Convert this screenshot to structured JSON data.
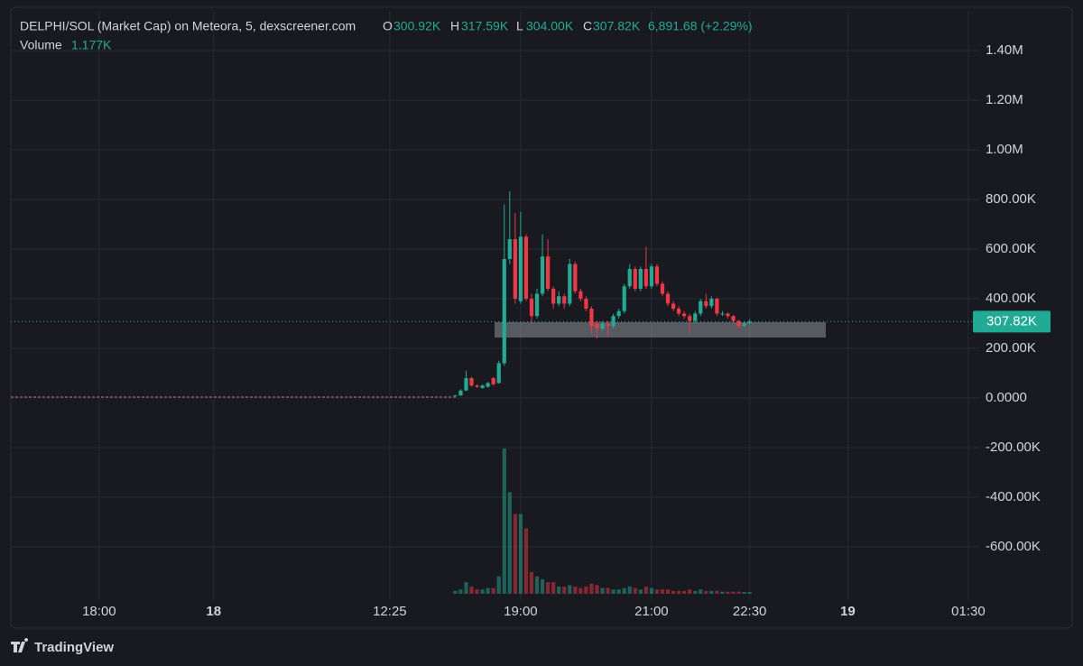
{
  "chart_data": {
    "type": "candlestick",
    "title": "DELPHI/SOL (Market Cap) on Meteora, 5, dexscreener.com",
    "legend": {
      "open_label": "O",
      "open": "300.92K",
      "high_label": "H",
      "high": "317.59K",
      "low_label": "L",
      "low": "304.00K",
      "close_label": "C",
      "close": "307.82K",
      "change": "6,891.68 (+2.29%)",
      "volume_label": "Volume",
      "volume": "1.177K"
    },
    "up_color": "#22ab94",
    "down_color": "#f23645",
    "grid": true,
    "x": [
      -12,
      -11,
      -10,
      -9,
      -8,
      -7,
      -6,
      -5,
      -4,
      -3,
      -2,
      -1,
      0,
      1,
      2,
      3,
      4,
      5,
      6,
      7,
      8,
      9,
      10,
      11,
      12,
      13,
      14,
      15,
      16,
      17,
      18,
      19,
      20,
      21,
      22,
      23,
      24,
      25,
      26,
      27,
      28,
      29,
      30,
      31,
      32,
      33,
      34,
      35,
      36,
      37,
      38,
      39,
      40,
      41,
      42
    ],
    "open": [
      8000,
      10000,
      30000,
      80000,
      50000,
      40000,
      45000,
      80000,
      60000,
      140000,
      560000,
      640000,
      390000,
      650000,
      400000,
      330000,
      420000,
      570000,
      440000,
      380000,
      410000,
      380000,
      540000,
      430000,
      400000,
      360000,
      300000,
      280000,
      300000,
      290000,
      330000,
      350000,
      450000,
      520000,
      440000,
      520000,
      450000,
      530000,
      460000,
      420000,
      380000,
      360000,
      340000,
      330000,
      310000,
      340000,
      390000,
      370000,
      400000,
      340000,
      340000,
      330000,
      310000,
      290000,
      300920
    ],
    "high": [
      12000,
      35000,
      110000,
      85000,
      55000,
      55000,
      65000,
      85000,
      150000,
      780000,
      833000,
      745000,
      750000,
      660000,
      420000,
      440000,
      660000,
      640000,
      450000,
      430000,
      420000,
      560000,
      550000,
      440000,
      410000,
      370000,
      310000,
      310000,
      310000,
      340000,
      360000,
      460000,
      540000,
      530000,
      530000,
      610000,
      540000,
      540000,
      470000,
      430000,
      390000,
      370000,
      350000,
      340000,
      350000,
      400000,
      420000,
      410000,
      405000,
      350000,
      345000,
      335000,
      315000,
      310000,
      317590
    ],
    "low": [
      6000,
      9000,
      28000,
      45000,
      40000,
      38000,
      42000,
      50000,
      58000,
      130000,
      540000,
      380000,
      380000,
      390000,
      300000,
      320000,
      410000,
      430000,
      360000,
      370000,
      360000,
      370000,
      420000,
      390000,
      350000,
      260000,
      240000,
      270000,
      250000,
      280000,
      320000,
      340000,
      440000,
      430000,
      430000,
      440000,
      440000,
      450000,
      410000,
      370000,
      350000,
      330000,
      320000,
      260000,
      300000,
      330000,
      360000,
      360000,
      330000,
      330000,
      320000,
      300000,
      280000,
      285000,
      304000
    ],
    "close": [
      10000,
      30000,
      80000,
      50000,
      45000,
      50000,
      60000,
      55000,
      140000,
      560000,
      640000,
      400000,
      650000,
      400000,
      330000,
      420000,
      570000,
      440000,
      380000,
      410000,
      380000,
      540000,
      430000,
      400000,
      360000,
      290000,
      280000,
      300000,
      290000,
      330000,
      350000,
      450000,
      520000,
      440000,
      520000,
      450000,
      530000,
      460000,
      420000,
      380000,
      360000,
      340000,
      330000,
      310000,
      340000,
      390000,
      370000,
      400000,
      340000,
      340000,
      330000,
      310000,
      290000,
      300000,
      307820
    ],
    "volume": [
      2000,
      3000,
      8000,
      5000,
      3000,
      3000,
      4000,
      4000,
      12000,
      100000,
      70000,
      55000,
      55000,
      45000,
      15000,
      12000,
      10000,
      8000,
      8000,
      5000,
      5000,
      6000,
      5000,
      4000,
      5000,
      7000,
      6000,
      4000,
      4000,
      3000,
      3000,
      4000,
      5000,
      4000,
      3000,
      5000,
      4000,
      3000,
      3000,
      3000,
      2000,
      2000,
      2000,
      3000,
      2000,
      3000,
      2000,
      2000,
      2000,
      1500,
      1500,
      1500,
      1500,
      1200,
      1177
    ],
    "last_price": {
      "value": 307820,
      "label": "307.82K"
    },
    "xlim": [
      -93.5,
      84.1
    ],
    "xticks": [
      {
        "value": -77.3,
        "label": "18:00"
      },
      {
        "value": -56.3,
        "label": "18"
      },
      {
        "value": -24,
        "label": "12:25"
      },
      {
        "value": 0,
        "label": "19:00"
      },
      {
        "value": 24,
        "label": "21:00"
      },
      {
        "value": 42,
        "label": "22:30"
      },
      {
        "value": 60,
        "label": "19"
      },
      {
        "value": 82.1,
        "label": "01:30"
      }
    ],
    "ylim": [
      -815000,
      1575000
    ],
    "yticks": [
      {
        "value": -600000,
        "label": "-600.00K"
      },
      {
        "value": -400000,
        "label": "-400.00K"
      },
      {
        "value": -200000,
        "label": "-200.00K"
      },
      {
        "value": 0,
        "label": "0.0000"
      },
      {
        "value": 200000,
        "label": "200.00K"
      },
      {
        "value": 400000,
        "label": "400.00K"
      },
      {
        "value": 600000,
        "label": "600.00K"
      },
      {
        "value": 800000,
        "label": "800.00K"
      },
      {
        "value": 1000000,
        "label": "1.00M"
      },
      {
        "value": 1200000,
        "label": "1.20M"
      },
      {
        "value": 1400000,
        "label": "1.40M"
      }
    ]
  },
  "footer": {
    "brand": "TradingView"
  }
}
